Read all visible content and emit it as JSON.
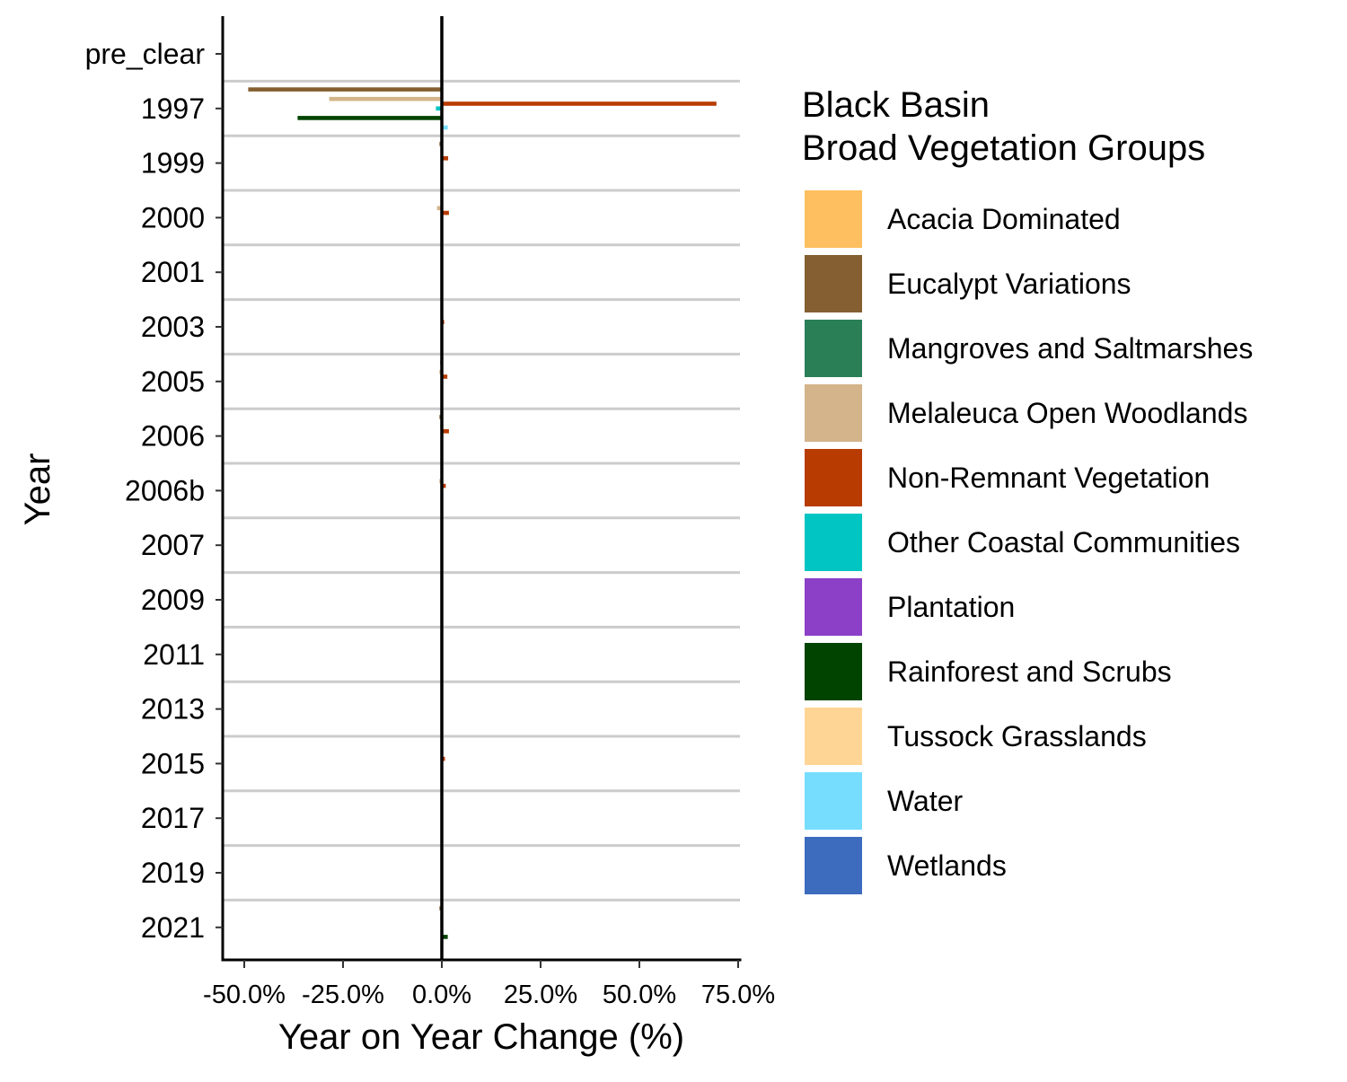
{
  "chart_data": {
    "type": "bar",
    "orientation": "horizontal",
    "xlabel": "Year on Year Change (%)",
    "ylabel": "Year",
    "xlim": [
      -55,
      75
    ],
    "x_ticks": [
      -50,
      -25,
      0,
      25,
      50,
      75
    ],
    "x_tick_labels": [
      "-50.0%",
      "-25.0%",
      "0.0%",
      "25.0%",
      "50.0%",
      "75.0%"
    ],
    "grid": "horizontal separators between year bands",
    "legend_position": "right",
    "legend_title": [
      "Black Basin",
      "Broad Vegetation Groups"
    ],
    "categories": [
      "pre_clear",
      "1997",
      "1999",
      "2000",
      "2001",
      "2003",
      "2005",
      "2006",
      "2006b",
      "2007",
      "2009",
      "2011",
      "2013",
      "2015",
      "2017",
      "2019",
      "2021"
    ],
    "series": [
      {
        "name": "Acacia Dominated",
        "color": "#FDBF5F",
        "values": [
          0,
          0,
          0,
          0,
          0,
          0,
          0,
          0,
          0,
          0,
          0,
          0,
          0,
          0,
          0,
          0,
          0
        ]
      },
      {
        "name": "Eucalypt Variations",
        "color": "#855F31",
        "values": [
          0,
          -49,
          -0.6,
          0,
          0,
          0,
          -0.4,
          -0.6,
          0,
          0,
          0,
          0,
          0,
          0,
          0,
          0,
          -0.6
        ]
      },
      {
        "name": "Mangroves and Saltmarshes",
        "color": "#2B7F57",
        "values": [
          0,
          0,
          0,
          0,
          0,
          0,
          0,
          0,
          0,
          0,
          0,
          0,
          0,
          0,
          0,
          0,
          0
        ]
      },
      {
        "name": "Melaleuca Open Woodlands",
        "color": "#D4B48A",
        "values": [
          0,
          -28.5,
          0,
          -1.2,
          0,
          0,
          -0.6,
          -0.4,
          -0.6,
          0,
          0,
          0,
          0,
          0,
          0,
          0,
          -0.4
        ]
      },
      {
        "name": "Non-Remnant Vegetation",
        "color": "#B83C02",
        "values": [
          0,
          69.5,
          1.6,
          1.8,
          0,
          0.6,
          1.4,
          1.8,
          1.0,
          0,
          0,
          0,
          0,
          0.8,
          0,
          0,
          0
        ]
      },
      {
        "name": "Other Coastal Communities",
        "color": "#00C5C3",
        "values": [
          0,
          -1.5,
          0,
          0,
          0,
          0,
          0,
          0,
          0,
          0,
          0,
          0,
          0,
          0,
          0,
          0,
          0
        ]
      },
      {
        "name": "Plantation",
        "color": "#8C3FC7",
        "values": [
          0,
          0,
          0,
          0,
          0,
          0,
          0,
          0,
          0,
          0,
          0,
          0,
          0,
          0,
          0,
          0,
          0
        ]
      },
      {
        "name": "Rainforest and Scrubs",
        "color": "#004400",
        "values": [
          0,
          -36.5,
          0,
          0,
          0,
          0,
          0,
          0,
          0,
          0,
          0,
          0,
          0,
          0,
          0,
          0,
          1.5
        ]
      },
      {
        "name": "Tussock Grasslands",
        "color": "#FFD596",
        "values": [
          0,
          0,
          0,
          0,
          0,
          0,
          0,
          0,
          0,
          0,
          0,
          0,
          0,
          0,
          0,
          0,
          0
        ]
      },
      {
        "name": "Water",
        "color": "#76DDFF",
        "values": [
          0,
          1.5,
          0,
          0,
          0,
          0,
          0,
          0,
          0,
          0,
          0,
          0,
          0,
          0,
          0,
          0,
          0
        ]
      },
      {
        "name": "Wetlands",
        "color": "#3D6BBE",
        "values": [
          0,
          0,
          0,
          0,
          0,
          0,
          0,
          0,
          0,
          0,
          0,
          0,
          0,
          0,
          0,
          0,
          0
        ]
      }
    ]
  }
}
